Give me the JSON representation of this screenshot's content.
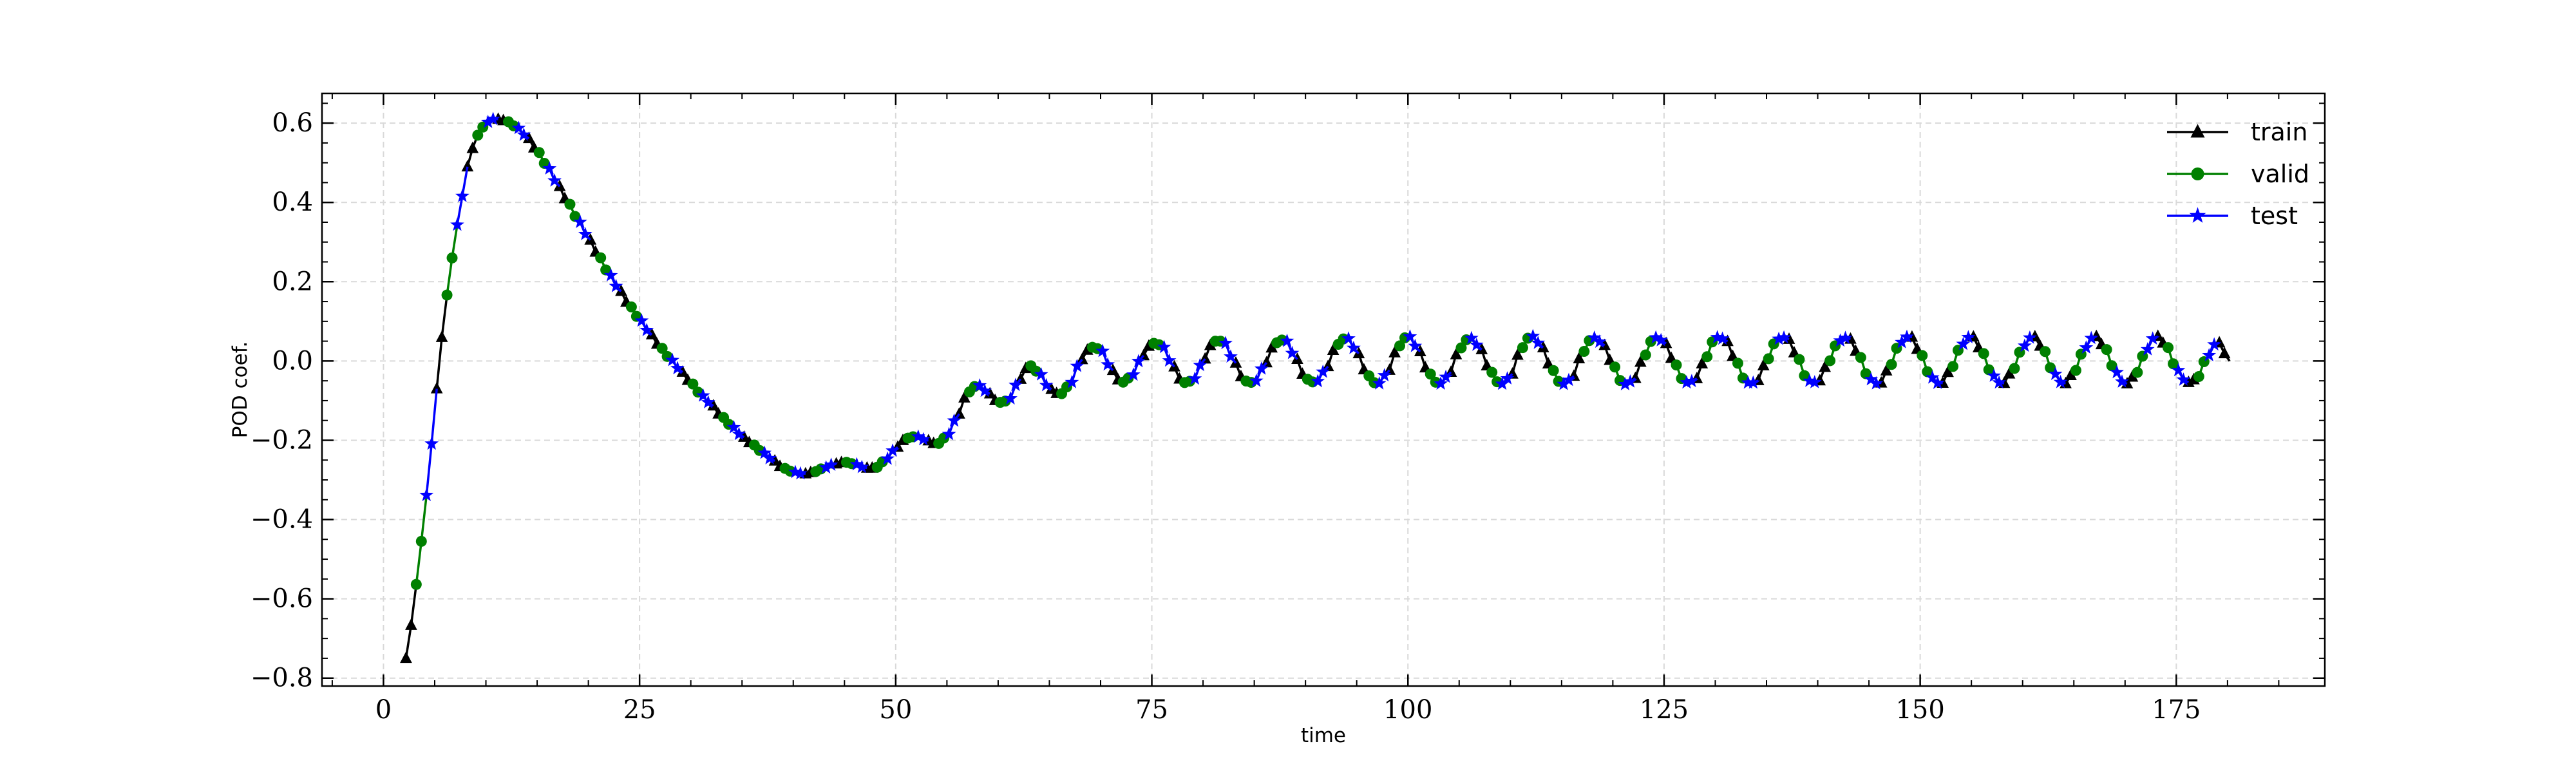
{
  "chart_data": {
    "type": "line",
    "xlabel": "time",
    "ylabel": "POD coef.",
    "xlim": [
      -6,
      189.5
    ],
    "ylim": [
      -0.82,
      0.675
    ],
    "xticks": [
      0,
      25,
      50,
      75,
      100,
      125,
      150,
      175
    ],
    "yticks": [
      -0.8,
      -0.6,
      -0.4,
      -0.2,
      0.0,
      0.2,
      0.4,
      0.6
    ],
    "xtick_labels": [
      "0",
      "25",
      "50",
      "75",
      "100",
      "125",
      "150",
      "175"
    ],
    "ytick_labels": [
      "−0.8",
      "−0.6",
      "−0.4",
      "−0.2",
      "0.0",
      "0.2",
      "0.4",
      "0.6"
    ],
    "grid": true,
    "legend_position": "top-right",
    "x_range": [
      2.2,
      180.2
    ],
    "sample_step": 0.5,
    "series": [
      {
        "name": "train",
        "color": "#000000",
        "marker": "triangle"
      },
      {
        "name": "valid",
        "color": "#008000",
        "marker": "circle"
      },
      {
        "name": "test",
        "color": "#0000ff",
        "marker": "star"
      }
    ],
    "curve_points": [
      [
        2.2,
        -0.75
      ],
      [
        2.8,
        -0.66
      ],
      [
        3.4,
        -0.53
      ],
      [
        4.0,
        -0.38
      ],
      [
        4.6,
        -0.22
      ],
      [
        5.2,
        -0.07
      ],
      [
        5.8,
        0.07
      ],
      [
        6.4,
        0.2
      ],
      [
        7.0,
        0.32
      ],
      [
        7.6,
        0.41
      ],
      [
        8.2,
        0.49
      ],
      [
        8.8,
        0.54
      ],
      [
        9.4,
        0.58
      ],
      [
        10.0,
        0.6
      ],
      [
        10.6,
        0.61
      ],
      [
        11.2,
        0.61
      ],
      [
        12.0,
        0.605
      ],
      [
        13.0,
        0.59
      ],
      [
        14.0,
        0.565
      ],
      [
        15.0,
        0.53
      ],
      [
        16.0,
        0.49
      ],
      [
        17.0,
        0.445
      ],
      [
        18.0,
        0.4
      ],
      [
        19.0,
        0.355
      ],
      [
        20.0,
        0.31
      ],
      [
        21.0,
        0.265
      ],
      [
        22.0,
        0.22
      ],
      [
        23.0,
        0.18
      ],
      [
        24.0,
        0.14
      ],
      [
        25.0,
        0.105
      ],
      [
        26.0,
        0.07
      ],
      [
        27.0,
        0.035
      ],
      [
        28.0,
        0.005
      ],
      [
        29.0,
        -0.025
      ],
      [
        30.0,
        -0.055
      ],
      [
        31.0,
        -0.085
      ],
      [
        32.0,
        -0.11
      ],
      [
        33.0,
        -0.14
      ],
      [
        34.0,
        -0.165
      ],
      [
        35.0,
        -0.19
      ],
      [
        36.0,
        -0.21
      ],
      [
        37.0,
        -0.23
      ],
      [
        38.0,
        -0.25
      ],
      [
        39.0,
        -0.27
      ],
      [
        40.0,
        -0.28
      ],
      [
        41.0,
        -0.285
      ],
      [
        42.0,
        -0.28
      ],
      [
        43.0,
        -0.27
      ],
      [
        44.0,
        -0.26
      ],
      [
        45.0,
        -0.255
      ],
      [
        46.0,
        -0.26
      ],
      [
        47.0,
        -0.27
      ],
      [
        48.0,
        -0.27
      ],
      [
        49.0,
        -0.25
      ],
      [
        50.0,
        -0.22
      ],
      [
        51.0,
        -0.195
      ],
      [
        52.0,
        -0.19
      ],
      [
        53.0,
        -0.2
      ],
      [
        54.0,
        -0.21
      ],
      [
        55.0,
        -0.19
      ],
      [
        56.0,
        -0.14
      ],
      [
        57.0,
        -0.08
      ],
      [
        58.0,
        -0.06
      ],
      [
        59.0,
        -0.08
      ],
      [
        60.0,
        -0.105
      ],
      [
        61.0,
        -0.1
      ],
      [
        62.0,
        -0.05
      ],
      [
        63.0,
        -0.01
      ],
      [
        64.0,
        -0.03
      ],
      [
        65.0,
        -0.07
      ],
      [
        66.0,
        -0.085
      ],
      [
        67.0,
        -0.06
      ],
      [
        68.0,
        0.0
      ],
      [
        69.0,
        0.035
      ],
      [
        70.0,
        0.03
      ],
      [
        71.0,
        -0.02
      ],
      [
        72.0,
        -0.055
      ],
      [
        73.0,
        -0.04
      ],
      [
        74.0,
        0.01
      ],
      [
        75.0,
        0.045
      ],
      [
        76.0,
        0.04
      ],
      [
        77.0,
        -0.01
      ],
      [
        78.0,
        -0.055
      ],
      [
        79.0,
        -0.05
      ],
      [
        80.0,
        0.0
      ],
      [
        81.0,
        0.05
      ],
      [
        82.0,
        0.05
      ],
      [
        83.0,
        0.0
      ],
      [
        84.0,
        -0.05
      ],
      [
        85.0,
        -0.055
      ],
      [
        86.0,
        -0.01
      ],
      [
        87.0,
        0.045
      ],
      [
        88.0,
        0.055
      ],
      [
        89.0,
        0.01
      ],
      [
        90.0,
        -0.045
      ],
      [
        91.0,
        -0.055
      ],
      [
        92.0,
        -0.02
      ],
      [
        93.0,
        0.04
      ],
      [
        94.0,
        0.06
      ],
      [
        95.0,
        0.025
      ],
      [
        96.0,
        -0.035
      ],
      [
        97.0,
        -0.06
      ],
      [
        98.0,
        -0.03
      ],
      [
        99.0,
        0.035
      ],
      [
        100.0,
        0.065
      ],
      [
        101.0,
        0.03
      ],
      [
        102.0,
        -0.03
      ],
      [
        103.0,
        -0.06
      ],
      [
        104.0,
        -0.035
      ],
      [
        105.0,
        0.03
      ],
      [
        106.0,
        0.06
      ],
      [
        107.0,
        0.035
      ],
      [
        108.0,
        -0.025
      ],
      [
        109.0,
        -0.06
      ],
      [
        110.0,
        -0.04
      ],
      [
        111.0,
        0.03
      ],
      [
        112.0,
        0.065
      ],
      [
        113.0,
        0.04
      ],
      [
        114.0,
        -0.02
      ],
      [
        115.0,
        -0.06
      ],
      [
        116.0,
        -0.045
      ],
      [
        117.0,
        0.02
      ],
      [
        118.0,
        0.06
      ],
      [
        119.0,
        0.045
      ],
      [
        120.0,
        -0.01
      ],
      [
        121.0,
        -0.06
      ],
      [
        122.0,
        -0.05
      ],
      [
        123.0,
        0.01
      ],
      [
        124.0,
        0.06
      ],
      [
        125.0,
        0.05
      ],
      [
        126.0,
        -0.005
      ],
      [
        127.0,
        -0.055
      ],
      [
        128.0,
        -0.05
      ],
      [
        129.0,
        0.005
      ],
      [
        130.0,
        0.06
      ],
      [
        131.0,
        0.055
      ],
      [
        132.0,
        0.0
      ],
      [
        133.0,
        -0.055
      ],
      [
        134.0,
        -0.055
      ],
      [
        135.0,
        0.0
      ],
      [
        136.0,
        0.055
      ],
      [
        137.0,
        0.06
      ],
      [
        138.0,
        0.01
      ],
      [
        139.0,
        -0.05
      ],
      [
        140.0,
        -0.055
      ],
      [
        141.0,
        -0.005
      ],
      [
        142.0,
        0.05
      ],
      [
        143.0,
        0.06
      ],
      [
        144.0,
        0.015
      ],
      [
        145.0,
        -0.045
      ],
      [
        146.0,
        -0.06
      ],
      [
        147.0,
        -0.015
      ],
      [
        148.0,
        0.045
      ],
      [
        149.0,
        0.065
      ],
      [
        150.0,
        0.02
      ],
      [
        151.0,
        -0.04
      ],
      [
        152.0,
        -0.06
      ],
      [
        153.0,
        -0.02
      ],
      [
        154.0,
        0.04
      ],
      [
        155.0,
        0.065
      ],
      [
        156.0,
        0.025
      ],
      [
        157.0,
        -0.035
      ],
      [
        158.0,
        -0.06
      ],
      [
        159.0,
        -0.025
      ],
      [
        160.0,
        0.035
      ],
      [
        161.0,
        0.065
      ],
      [
        162.0,
        0.03
      ],
      [
        163.0,
        -0.03
      ],
      [
        164.0,
        -0.06
      ],
      [
        165.0,
        -0.03
      ],
      [
        166.0,
        0.03
      ],
      [
        167.0,
        0.065
      ],
      [
        168.0,
        0.035
      ],
      [
        169.0,
        -0.025
      ],
      [
        170.0,
        -0.06
      ],
      [
        171.0,
        -0.035
      ],
      [
        172.0,
        0.025
      ],
      [
        173.0,
        0.065
      ],
      [
        174.0,
        0.04
      ],
      [
        175.0,
        -0.02
      ],
      [
        176.0,
        -0.055
      ],
      [
        177.0,
        -0.045
      ],
      [
        178.0,
        0.01
      ],
      [
        179.0,
        0.05
      ],
      [
        180.0,
        0.01
      ],
      [
        180.2,
        0.0
      ]
    ]
  }
}
